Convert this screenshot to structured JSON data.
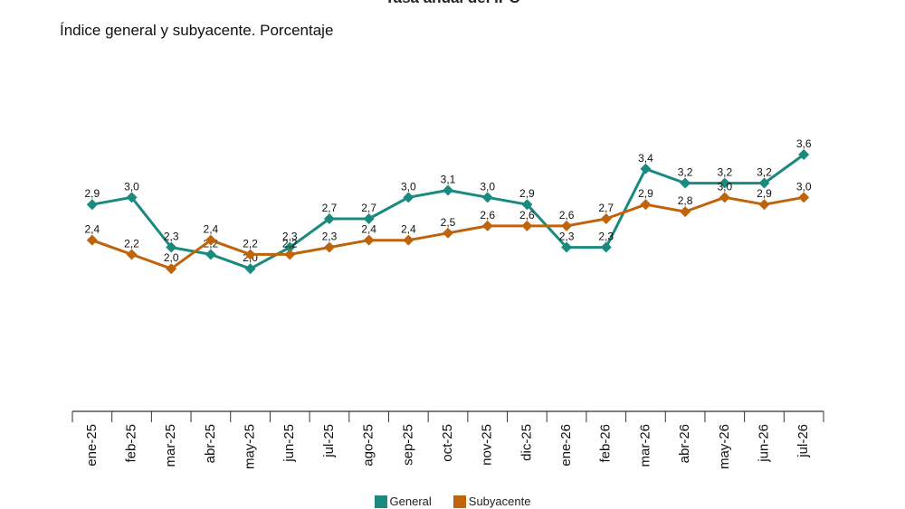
{
  "chart_data": {
    "type": "line",
    "title": "Tasa anual del IPC",
    "subtitle": "Índice general y subyacente. Porcentaje",
    "categories": [
      "ene-25",
      "feb-25",
      "mar-25",
      "abr-25",
      "may-25",
      "jun-25",
      "jul-25",
      "ago-25",
      "sep-25",
      "oct-25",
      "nov-25",
      "dic-25",
      "ene-26",
      "feb-26",
      "mar-26",
      "abr-26",
      "may-26",
      "jun-26",
      "jul-26"
    ],
    "series": [
      {
        "name": "General",
        "color": "#1a8a7e",
        "values": [
          2.9,
          3.0,
          2.3,
          2.2,
          2.0,
          2.3,
          2.7,
          2.7,
          3.0,
          3.1,
          3.0,
          2.9,
          2.3,
          2.3,
          3.4,
          3.2,
          3.2,
          3.2,
          3.6
        ],
        "labels": [
          "2,9",
          "3,0",
          "2,3",
          "2,2",
          "2,0",
          "2,3",
          "2,7",
          "2,7",
          "3,0",
          "3,1",
          "3,0",
          "2,9",
          "2,3",
          "2,3",
          "3,4",
          "3,2",
          "3,2",
          "3,2",
          "3,6"
        ]
      },
      {
        "name": "Subyacente",
        "color": "#c0640c",
        "values": [
          2.4,
          2.2,
          2.0,
          2.4,
          2.2,
          2.2,
          2.3,
          2.4,
          2.4,
          2.5,
          2.6,
          2.6,
          2.6,
          2.7,
          2.9,
          2.8,
          3.0,
          2.9,
          3.0
        ],
        "labels": [
          "2,4",
          "2,2",
          "2,0",
          "2,4",
          "2,2",
          "2,2",
          "2,3",
          "2,4",
          "2,4",
          "2,5",
          "2,6",
          "2,6",
          "2,6",
          "2,7",
          "2,9",
          "2,8",
          "3,0",
          "2,9",
          "3,0"
        ]
      }
    ],
    "ylim": [
      0,
      4.5
    ],
    "grid": false,
    "legend_position": "bottom"
  }
}
